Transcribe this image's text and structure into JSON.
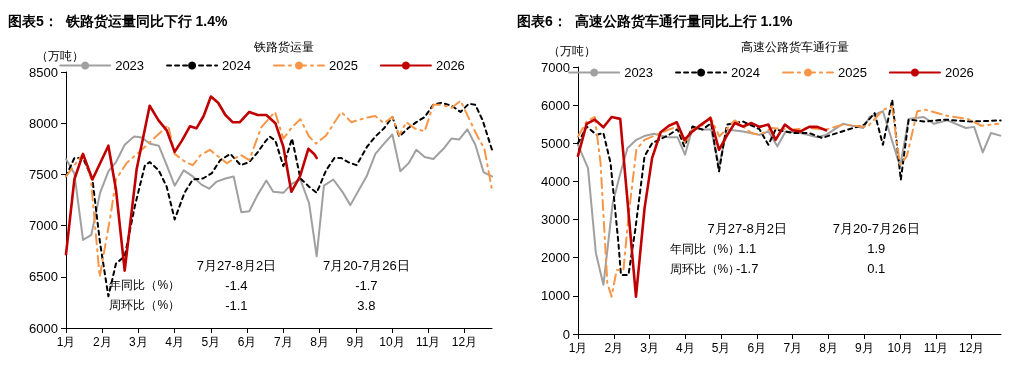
{
  "chart_data": [
    {
      "type": "line",
      "title": "图表5：  铁路货运量同比下行 1.4%",
      "subtitle": "铁路货运量",
      "ylabel": "（万吨）",
      "xlim": [
        1,
        12.76
      ],
      "xticks": [
        {
          "value": 1,
          "label": "1月"
        },
        {
          "value": 2,
          "label": "2月"
        },
        {
          "value": 3,
          "label": "3月"
        },
        {
          "value": 4,
          "label": "4月"
        },
        {
          "value": 5,
          "label": "5月"
        },
        {
          "value": 6,
          "label": "6月"
        },
        {
          "value": 7,
          "label": "7月"
        },
        {
          "value": 8,
          "label": "8月"
        },
        {
          "value": 9,
          "label": "9月"
        },
        {
          "value": 10,
          "label": "10月"
        },
        {
          "value": 11,
          "label": "11月"
        },
        {
          "value": 12,
          "label": "12月"
        }
      ],
      "ylim": [
        6000,
        8500
      ],
      "yticks": [
        6000,
        6500,
        7000,
        7500,
        8000,
        8500
      ],
      "legend": "top",
      "grid": false,
      "marker": "none",
      "annotations": [
        "7月27-8月2日",
        "7月20-7月26日",
        "年同比（%）",
        "周环比（%）",
        "-1.4",
        "-1.7",
        "-1.1",
        "3.8"
      ],
      "series": [
        {
          "name": "2023",
          "color": "#a0a0a0",
          "line_style": "solid",
          "x": [
            1.0,
            1.23,
            1.47,
            1.7,
            1.94,
            2.17,
            2.38,
            2.62,
            2.88,
            3.09,
            3.32,
            3.56,
            3.78,
            4.0,
            4.25,
            4.5,
            4.74,
            4.95,
            5.16,
            5.4,
            5.63,
            5.84,
            6.06,
            6.29,
            6.53,
            6.72,
            7.0,
            7.24,
            7.47,
            7.71,
            7.92,
            8.12,
            8.38,
            8.63,
            8.85,
            9.31,
            9.54,
            9.78,
            10.01,
            10.23,
            10.46,
            10.67,
            10.9,
            11.14,
            11.42,
            11.64,
            11.85,
            12.08,
            12.3,
            12.53,
            12.76
          ],
          "values": [
            7650,
            7510,
            6860,
            6910,
            7320,
            7530,
            7620,
            7790,
            7870,
            7860,
            7800,
            7780,
            7590,
            7390,
            7540,
            7480,
            7400,
            7360,
            7430,
            7460,
            7480,
            7130,
            7140,
            7300,
            7440,
            7330,
            7320,
            7410,
            7450,
            7220,
            6700,
            7390,
            7450,
            7330,
            7200,
            7490,
            7700,
            7800,
            7890,
            7530,
            7610,
            7740,
            7670,
            7650,
            7750,
            7850,
            7840,
            7940,
            7790,
            7520,
            7480
          ]
        },
        {
          "name": "2024",
          "color": "#000000",
          "line_style": "dashed",
          "x": [
            1.0,
            1.23,
            1.47,
            1.73,
            1.94,
            2.17,
            2.38,
            2.62,
            2.9,
            3.18,
            3.31,
            3.56,
            3.78,
            4.0,
            4.27,
            4.5,
            4.78,
            5.02,
            5.26,
            5.54,
            5.82,
            6.06,
            6.3,
            6.5,
            6.62,
            6.78,
            7.0,
            7.24,
            7.47,
            7.71,
            7.92,
            8.18,
            8.41,
            8.6,
            8.79,
            9.02,
            9.31,
            9.54,
            9.78,
            10.01,
            10.2,
            10.44,
            10.67,
            10.9,
            11.14,
            11.37,
            11.65,
            11.89,
            12.12,
            12.3,
            12.5,
            12.76
          ],
          "values": [
            7480,
            7660,
            7660,
            7450,
            6830,
            6310,
            6630,
            6700,
            7190,
            7590,
            7620,
            7540,
            7380,
            7060,
            7320,
            7450,
            7460,
            7510,
            7640,
            7700,
            7590,
            7620,
            7720,
            7820,
            7870,
            7830,
            7580,
            7850,
            7460,
            7380,
            7320,
            7540,
            7660,
            7660,
            7620,
            7590,
            7770,
            7870,
            7950,
            8060,
            7870,
            7950,
            8010,
            8060,
            8180,
            8200,
            8170,
            8110,
            8190,
            8180,
            8030,
            7740
          ]
        },
        {
          "name": "2025",
          "color": "#f79646",
          "line_style": "dashdot",
          "x": [
            1.0,
            1.47,
            1.68,
            1.93,
            2.24,
            2.38,
            2.67,
            3.09,
            3.82,
            4.0,
            4.3,
            4.5,
            4.72,
            4.97,
            5.44,
            5.82,
            6.06,
            6.39,
            6.77,
            7.0,
            7.24,
            7.47,
            7.71,
            7.9,
            8.18,
            8.6,
            8.88,
            9.25,
            9.54,
            9.78,
            10.01,
            10.2,
            10.39,
            10.62,
            10.9,
            11.14,
            11.37,
            11.65,
            11.89,
            12.12,
            12.36,
            12.55,
            12.76
          ],
          "values": [
            7480,
            7700,
            7480,
            6500,
            7120,
            7450,
            7610,
            7740,
            7980,
            7700,
            7620,
            7590,
            7690,
            7740,
            7610,
            7690,
            7640,
            7960,
            8110,
            7850,
            7960,
            8040,
            7870,
            7800,
            7880,
            8110,
            8010,
            8050,
            8070,
            8000,
            8060,
            7880,
            8010,
            7950,
            7920,
            8180,
            8180,
            8150,
            8220,
            8050,
            7870,
            7750,
            7350
          ]
        },
        {
          "name": "2026",
          "color": "#c00000",
          "line_style": "solid",
          "x": [
            1.0,
            1.23,
            1.47,
            1.73,
            2.17,
            2.38,
            2.62,
            2.95,
            3.31,
            3.55,
            3.78,
            4.0,
            4.2,
            4.42,
            4.6,
            4.8,
            5.0,
            5.2,
            5.4,
            5.6,
            5.8,
            6.06,
            6.29,
            6.53,
            6.78,
            7.0,
            7.22,
            7.46,
            7.69,
            7.85,
            7.92
          ],
          "values": [
            6720,
            7450,
            7700,
            7450,
            7780,
            7350,
            6560,
            7550,
            8170,
            8030,
            7930,
            7720,
            7830,
            7970,
            7950,
            8070,
            8260,
            8200,
            8080,
            8010,
            8010,
            8110,
            8080,
            8080,
            8000,
            7770,
            7330,
            7480,
            7750,
            7700,
            7660
          ]
        }
      ]
    },
    {
      "type": "line",
      "title": "图表6：  高速公路货车通行量同比上行 1.1%",
      "subtitle": "高速公路货车通行量",
      "ylabel": "（万吨）",
      "xlim": [
        1,
        12.82
      ],
      "xticks": [
        {
          "value": 1,
          "label": "1月"
        },
        {
          "value": 2,
          "label": "2月"
        },
        {
          "value": 3,
          "label": "3月"
        },
        {
          "value": 4,
          "label": "4月"
        },
        {
          "value": 5,
          "label": "5月"
        },
        {
          "value": 6,
          "label": "6月"
        },
        {
          "value": 7,
          "label": "7月"
        },
        {
          "value": 8,
          "label": "8月"
        },
        {
          "value": 9,
          "label": "9月"
        },
        {
          "value": 10,
          "label": "10月"
        },
        {
          "value": 11,
          "label": "11月"
        },
        {
          "value": 12,
          "label": "12月"
        }
      ],
      "ylim": [
        0,
        7000
      ],
      "yticks": [
        0,
        1000,
        2000,
        3000,
        4000,
        5000,
        6000,
        7000
      ],
      "legend": "top",
      "grid": false,
      "marker": "none",
      "annotations": [
        "7月27-8月2日",
        "7月20-7月26日",
        "年同比（%）",
        "周环比（%）",
        "1.1",
        "1.9",
        "-1.7",
        "0.1"
      ],
      "series": [
        {
          "name": "2023",
          "color": "#a0a0a0",
          "line_style": "solid",
          "x": [
            1.0,
            1.28,
            1.5,
            1.71,
            1.97,
            2.16,
            2.38,
            2.63,
            2.88,
            3.12,
            3.5,
            3.78,
            3.99,
            4.2,
            4.48,
            4.72,
            4.94,
            5.16,
            5.61,
            6.07,
            6.32,
            6.57,
            6.8,
            7.22,
            7.69,
            7.93,
            8.4,
            8.97,
            9.15,
            9.52,
            10.0,
            10.24,
            10.66,
            10.95,
            11.32,
            11.84,
            12.07,
            12.31,
            12.54,
            12.8
          ],
          "values": [
            4960,
            4350,
            2120,
            1290,
            3430,
            4130,
            4870,
            5090,
            5200,
            5250,
            5160,
            5160,
            4700,
            5400,
            5360,
            5360,
            4390,
            5360,
            5310,
            5220,
            5310,
            4920,
            5310,
            5270,
            5160,
            5220,
            5510,
            5400,
            5690,
            5840,
            4390,
            5640,
            5690,
            5510,
            5600,
            5400,
            5430,
            4760,
            5270,
            5200
          ]
        },
        {
          "name": "2024",
          "color": "#000000",
          "line_style": "dashed",
          "x": [
            1.0,
            1.24,
            1.52,
            1.71,
            1.91,
            2.13,
            2.2,
            2.41,
            2.6,
            2.86,
            3.07,
            3.54,
            3.78,
            3.97,
            4.2,
            4.48,
            4.72,
            4.94,
            5.16,
            5.61,
            6.07,
            6.32,
            6.52,
            6.99,
            7.46,
            7.82,
            8.31,
            9.0,
            9.29,
            9.52,
            9.78,
            10.02,
            10.24,
            10.66,
            11.27,
            11.98,
            12.81
          ],
          "values": [
            5000,
            5440,
            5220,
            5270,
            4480,
            2380,
            1550,
            1550,
            2730,
            4660,
            5000,
            5220,
            5370,
            4920,
            5440,
            5360,
            5530,
            4260,
            5490,
            5570,
            5370,
            4960,
            5360,
            5270,
            5270,
            5140,
            5290,
            5490,
            5790,
            4960,
            6140,
            4040,
            5620,
            5570,
            5620,
            5570,
            5600
          ]
        },
        {
          "name": "2025",
          "color": "#f79646",
          "line_style": "dashdot",
          "x": [
            1.0,
            1.24,
            1.47,
            1.63,
            1.82,
            1.94,
            2.08,
            2.27,
            2.41,
            2.63,
            2.86,
            3.31,
            3.54,
            3.78,
            4.0,
            4.2,
            4.44,
            4.7,
            4.95,
            5.38,
            5.85,
            6.08,
            6.42,
            6.99,
            7.46,
            7.93,
            8.4,
            8.92,
            9.1,
            9.53,
            9.77,
            10.0,
            10.19,
            10.48,
            10.71,
            11.32,
            11.89,
            12.27,
            12.74
          ],
          "values": [
            5180,
            5570,
            5690,
            4480,
            1330,
            980,
            1680,
            1680,
            3080,
            4830,
            5090,
            5270,
            5360,
            5440,
            5000,
            5360,
            5440,
            5690,
            5180,
            5600,
            5270,
            5220,
            5400,
            5360,
            5400,
            5360,
            5490,
            5440,
            5440,
            5880,
            5970,
            4440,
            4660,
            5840,
            5880,
            5720,
            5640,
            5460,
            5510
          ]
        },
        {
          "name": "2026",
          "color": "#c00000",
          "line_style": "solid",
          "x": [
            1.0,
            1.24,
            1.47,
            1.71,
            1.94,
            2.18,
            2.62,
            2.86,
            3.07,
            3.31,
            3.54,
            3.76,
            3.97,
            4.2,
            4.44,
            4.7,
            4.94,
            5.16,
            5.38,
            5.61,
            5.85,
            6.07,
            6.32,
            6.52,
            6.78,
            6.99,
            7.22,
            7.46,
            7.69,
            7.93
          ],
          "values": [
            4670,
            5510,
            5620,
            5420,
            5690,
            5640,
            980,
            3300,
            4610,
            5290,
            5460,
            5550,
            5090,
            5310,
            5490,
            5660,
            4830,
            5200,
            5530,
            5440,
            5530,
            5430,
            5490,
            5090,
            5490,
            5340,
            5310,
            5430,
            5430,
            5340
          ]
        }
      ]
    }
  ]
}
